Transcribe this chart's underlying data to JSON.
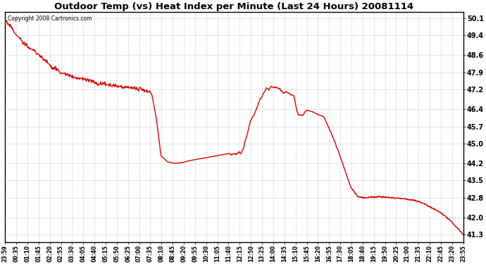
{
  "title": "Outdoor Temp (vs) Heat Index per Minute (Last 24 Hours) 20081114",
  "copyright_text": "Copyright 2008 Cartronics.com",
  "line_color": "#dd0000",
  "background_color": "#ffffff",
  "grid_color": "#aaaaaa",
  "y_ticks": [
    41.3,
    42.0,
    42.8,
    43.5,
    44.2,
    45.0,
    45.7,
    46.4,
    47.2,
    47.9,
    48.6,
    49.4,
    50.1
  ],
  "ylim": [
    41.0,
    50.35
  ],
  "x_labels": [
    "23:59",
    "00:35",
    "01:10",
    "01:45",
    "02:20",
    "02:55",
    "03:30",
    "04:05",
    "04:40",
    "05:15",
    "05:50",
    "06:25",
    "07:00",
    "07:35",
    "08:10",
    "08:45",
    "09:20",
    "09:55",
    "10:30",
    "11:05",
    "11:40",
    "12:15",
    "12:50",
    "13:25",
    "14:00",
    "14:35",
    "15:10",
    "15:45",
    "16:20",
    "16:55",
    "17:30",
    "18:05",
    "18:40",
    "19:15",
    "19:50",
    "20:25",
    "21:00",
    "21:35",
    "22:10",
    "22:45",
    "23:20",
    "23:55"
  ],
  "control_times": [
    0.0,
    0.01,
    0.02,
    0.035,
    0.045,
    0.06,
    0.075,
    0.09,
    0.105,
    0.12,
    0.135,
    0.15,
    0.165,
    0.175,
    0.185,
    0.195,
    0.21,
    0.22,
    0.23,
    0.245,
    0.255,
    0.265,
    0.275,
    0.285,
    0.295,
    0.305,
    0.315,
    0.32,
    0.33,
    0.34,
    0.355,
    0.37,
    0.385,
    0.4,
    0.415,
    0.43,
    0.445,
    0.46,
    0.475,
    0.49,
    0.505,
    0.515,
    0.52,
    0.525,
    0.53,
    0.535,
    0.54,
    0.545,
    0.55,
    0.555,
    0.56,
    0.565,
    0.57,
    0.575,
    0.58,
    0.59,
    0.6,
    0.61,
    0.62,
    0.63,
    0.64,
    0.65,
    0.66,
    0.67,
    0.68,
    0.695,
    0.71,
    0.725,
    0.74,
    0.755,
    0.77,
    0.785,
    0.8,
    0.815,
    0.83,
    0.845,
    0.86,
    0.875,
    0.89,
    0.91,
    0.93,
    0.95,
    0.97,
    1.0
  ],
  "control_values": [
    50.0,
    49.8,
    49.5,
    49.2,
    49.0,
    48.8,
    48.6,
    48.3,
    48.1,
    47.9,
    47.8,
    47.7,
    47.65,
    47.6,
    47.55,
    47.5,
    47.45,
    47.4,
    47.38,
    47.35,
    47.3,
    47.28,
    47.25,
    47.2,
    47.18,
    47.15,
    47.1,
    47.0,
    46.0,
    44.5,
    44.25,
    44.2,
    44.22,
    44.3,
    44.35,
    44.4,
    44.45,
    44.5,
    44.55,
    44.6,
    44.7,
    44.8,
    45.0,
    45.3,
    45.6,
    46.0,
    46.3,
    46.5,
    46.7,
    46.9,
    47.1,
    47.3,
    47.5,
    47.4,
    47.5,
    47.45,
    47.4,
    47.35,
    47.3,
    47.25,
    46.4,
    46.3,
    46.35,
    46.3,
    46.2,
    46.1,
    45.5,
    44.8,
    44.0,
    43.2,
    42.85,
    42.8,
    42.82,
    42.85,
    42.82,
    42.8,
    42.78,
    42.75,
    42.7,
    42.6,
    42.4,
    42.2,
    41.9,
    41.3
  ]
}
